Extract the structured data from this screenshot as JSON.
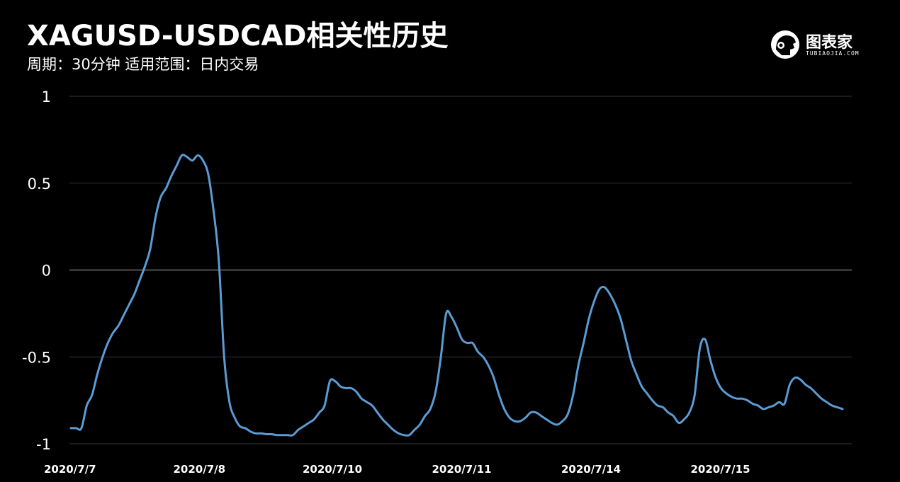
{
  "header": {
    "title": "XAGUSD-USDCAD相关性历史",
    "subtitle": "周期：30分钟  适用范围：日内交易"
  },
  "logo": {
    "brand": "图表家",
    "brand_sub": "TUBIAOJIA.COM",
    "icon": "robot-head-icon"
  },
  "colors": {
    "background": "#000000",
    "line": "#5b9bd5",
    "grid": "#333333",
    "zero_line": "#888888",
    "text": "#ffffff"
  },
  "chart_data": {
    "type": "line",
    "title": "XAGUSD-USDCAD相关性历史",
    "xlabel": "",
    "ylabel": "",
    "ylim": [
      -1,
      1
    ],
    "yticks": [
      "1",
      "0.5",
      "0",
      "-0.5",
      "-1"
    ],
    "grid": true,
    "legend": "none",
    "x_tick_labels": [
      "2020/7/7",
      "2020/7/8",
      "2020/7/10",
      "2020/7/11",
      "2020/7/14",
      "2020/7/15"
    ],
    "series": [
      {
        "values": [
          -0.91,
          -0.91,
          -0.91,
          -0.78,
          -0.72,
          -0.6,
          -0.5,
          -0.42,
          -0.36,
          -0.32,
          -0.26,
          -0.2,
          -0.14,
          -0.06,
          0.02,
          0.12,
          0.3,
          0.42,
          0.47,
          0.54,
          0.6,
          0.66,
          0.65,
          0.63,
          0.66,
          0.63,
          0.55,
          0.34,
          0.05,
          -0.5,
          -0.76,
          -0.85,
          -0.9,
          -0.91,
          -0.93,
          -0.94,
          -0.94,
          -0.945,
          -0.945,
          -0.95,
          -0.95,
          -0.95,
          -0.95,
          -0.92,
          -0.9,
          -0.88,
          -0.86,
          -0.82,
          -0.78,
          -0.64,
          -0.64,
          -0.67,
          -0.68,
          -0.68,
          -0.7,
          -0.74,
          -0.76,
          -0.78,
          -0.82,
          -0.86,
          -0.89,
          -0.92,
          -0.94,
          -0.95,
          -0.95,
          -0.92,
          -0.89,
          -0.84,
          -0.8,
          -0.7,
          -0.5,
          -0.25,
          -0.27,
          -0.33,
          -0.4,
          -0.42,
          -0.42,
          -0.47,
          -0.5,
          -0.55,
          -0.62,
          -0.72,
          -0.8,
          -0.85,
          -0.87,
          -0.87,
          -0.85,
          -0.82,
          -0.82,
          -0.84,
          -0.86,
          -0.88,
          -0.89,
          -0.87,
          -0.83,
          -0.72,
          -0.55,
          -0.42,
          -0.28,
          -0.18,
          -0.11,
          -0.1,
          -0.14,
          -0.2,
          -0.28,
          -0.4,
          -0.52,
          -0.6,
          -0.67,
          -0.71,
          -0.75,
          -0.78,
          -0.79,
          -0.82,
          -0.84,
          -0.88,
          -0.86,
          -0.82,
          -0.72,
          -0.45,
          -0.4,
          -0.52,
          -0.62,
          -0.68,
          -0.71,
          -0.73,
          -0.74,
          -0.74,
          -0.75,
          -0.77,
          -0.78,
          -0.8,
          -0.79,
          -0.78,
          -0.76,
          -0.77,
          -0.66,
          -0.62,
          -0.63,
          -0.66,
          -0.68,
          -0.71,
          -0.74,
          -0.76,
          -0.78,
          -0.79,
          -0.8
        ]
      }
    ]
  }
}
